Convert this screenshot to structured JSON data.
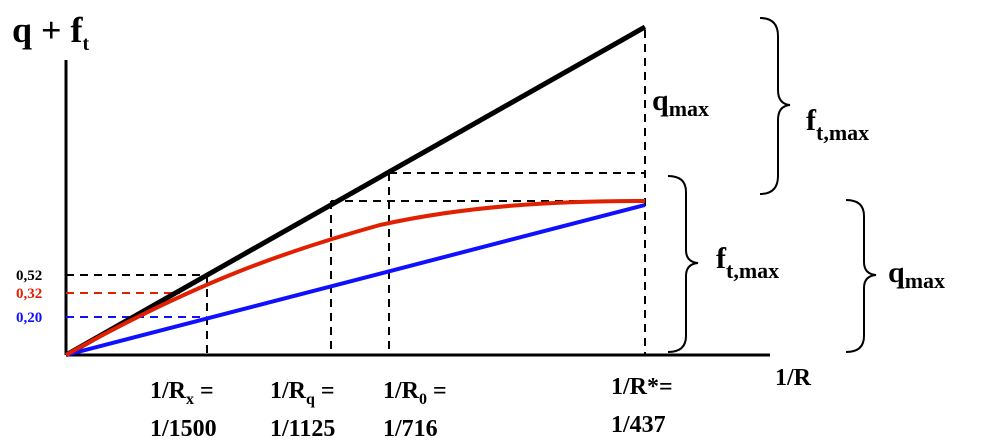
{
  "axes": {
    "y_label": "q + f",
    "y_label_sub": "t",
    "x_label": "1/R"
  },
  "y_ticks": [
    {
      "text": "0,52",
      "color": "#000000"
    },
    {
      "text": "0,32",
      "color": "#e02000"
    },
    {
      "text": "0,20",
      "color": "#1010ff"
    }
  ],
  "x_ticks": [
    {
      "line1": "1/R",
      "sub": "x",
      "suffix": " =",
      "line2": "1/1500"
    },
    {
      "line1": "1/R",
      "sub": "q",
      "suffix": " =",
      "line2": "1/1125"
    },
    {
      "line1": "1/R",
      "sub": "0",
      "suffix": " =",
      "line2": "1/716"
    },
    {
      "line1": "1/R*=",
      "sub": "",
      "suffix": "",
      "line2": "1/437"
    }
  ],
  "labels": {
    "q_max_inner": {
      "main": "q",
      "sub": "max"
    },
    "f_t_max_right": {
      "main": "f",
      "sub": "t,max"
    },
    "f_t_max_mid": {
      "main": "f",
      "sub": "t,max"
    },
    "q_max_far": {
      "main": "q",
      "sub": "max"
    }
  },
  "colors": {
    "total": "#000000",
    "red": "#e02000",
    "blue": "#1010ff"
  }
}
